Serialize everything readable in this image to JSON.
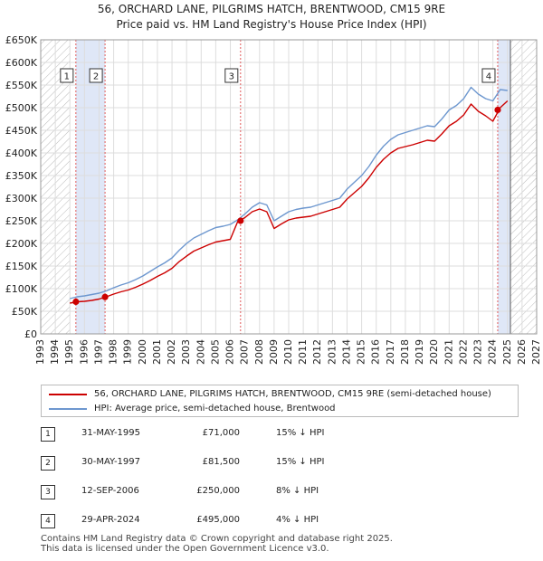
{
  "title_line1": "56, ORCHARD LANE, PILGRIMS HATCH, BRENTWOOD, CM15 9RE",
  "title_line2": "Price paid vs. HM Land Registry's House Price Index (HPI)",
  "colors": {
    "property": "#cc0000",
    "hpi": "#6d97cf",
    "sale_band": "#dfe7f7",
    "marker_line": "#e05a5a",
    "hatch": "#bbbbbb"
  },
  "legend": {
    "property_label": "56, ORCHARD LANE, PILGRIMS HATCH, BRENTWOOD, CM15 9RE (semi-detached house)",
    "hpi_label": "HPI: Average price, semi-detached house, Brentwood"
  },
  "transactions": [
    {
      "num": "1",
      "date": "31-MAY-1995",
      "price": "£71,000",
      "hpi": "15% ↓ HPI"
    },
    {
      "num": "2",
      "date": "30-MAY-1997",
      "price": "£81,500",
      "hpi": "15% ↓ HPI"
    },
    {
      "num": "3",
      "date": "12-SEP-2006",
      "price": "£250,000",
      "hpi": "8% ↓ HPI"
    },
    {
      "num": "4",
      "date": "29-APR-2024",
      "price": "£495,000",
      "hpi": "4% ↓ HPI"
    }
  ],
  "footer_line1": "Contains HM Land Registry data © Crown copyright and database right 2025.",
  "footer_line2": "This data is licensed under the Open Government Licence v3.0.",
  "chart_data": {
    "type": "line",
    "title": "Price paid vs. HM Land Registry's House Price Index (HPI)",
    "xlabel": "",
    "ylabel": "",
    "xlim": [
      1993,
      2027
    ],
    "ylim": [
      0,
      650000
    ],
    "x_ticks": [
      1993,
      1994,
      1995,
      1996,
      1997,
      1998,
      1999,
      2000,
      2001,
      2002,
      2003,
      2004,
      2005,
      2006,
      2007,
      2008,
      2009,
      2010,
      2011,
      2012,
      2013,
      2014,
      2015,
      2016,
      2017,
      2018,
      2019,
      2020,
      2021,
      2022,
      2023,
      2024,
      2025,
      2026,
      2027
    ],
    "y_ticks": [
      0,
      50000,
      100000,
      150000,
      200000,
      250000,
      300000,
      350000,
      400000,
      450000,
      500000,
      550000,
      600000,
      650000
    ],
    "y_tick_labels": [
      "£0",
      "£50K",
      "£100K",
      "£150K",
      "£200K",
      "£250K",
      "£300K",
      "£350K",
      "£400K",
      "£450K",
      "£500K",
      "£550K",
      "£600K",
      "£650K"
    ],
    "grid": true,
    "data_start": 1995.0,
    "data_end": 2025.2,
    "shaded_between_sales": [
      [
        1995.41,
        1997.41
      ],
      [
        2024.33,
        2025.2
      ]
    ],
    "hatched_regions": [
      [
        1993,
        1995.0
      ],
      [
        2025.2,
        2027
      ]
    ],
    "sales": [
      {
        "label": "1",
        "x": 1995.41,
        "y": 71000
      },
      {
        "label": "2",
        "x": 1997.41,
        "y": 81500
      },
      {
        "label": "3",
        "x": 2006.7,
        "y": 250000
      },
      {
        "label": "4",
        "x": 2024.33,
        "y": 495000
      }
    ],
    "series": [
      {
        "name": "HPI: Average price, semi-detached house, Brentwood",
        "x": [
          1995.0,
          1995.5,
          1996.0,
          1996.5,
          1997.0,
          1997.5,
          1998.0,
          1998.5,
          1999.0,
          1999.5,
          2000.0,
          2000.5,
          2001.0,
          2001.5,
          2002.0,
          2002.5,
          2003.0,
          2003.5,
          2004.0,
          2004.5,
          2005.0,
          2005.5,
          2006.0,
          2006.5,
          2007.0,
          2007.5,
          2008.0,
          2008.5,
          2009.0,
          2009.5,
          2010.0,
          2010.5,
          2011.0,
          2011.5,
          2012.0,
          2012.5,
          2013.0,
          2013.5,
          2014.0,
          2014.5,
          2015.0,
          2015.5,
          2016.0,
          2016.5,
          2017.0,
          2017.5,
          2018.0,
          2018.5,
          2019.0,
          2019.5,
          2020.0,
          2020.5,
          2021.0,
          2021.5,
          2022.0,
          2022.5,
          2023.0,
          2023.5,
          2024.0,
          2024.5,
          2025.0
        ],
        "values": [
          78000,
          82000,
          84000,
          87000,
          90000,
          95000,
          102000,
          108000,
          113000,
          120000,
          128000,
          138000,
          148000,
          157000,
          168000,
          185000,
          200000,
          212000,
          220000,
          228000,
          235000,
          238000,
          242000,
          252000,
          265000,
          280000,
          290000,
          285000,
          250000,
          260000,
          270000,
          275000,
          278000,
          280000,
          285000,
          290000,
          295000,
          300000,
          320000,
          335000,
          350000,
          370000,
          395000,
          415000,
          430000,
          440000,
          445000,
          450000,
          455000,
          460000,
          458000,
          475000,
          495000,
          505000,
          520000,
          545000,
          530000,
          520000,
          515000,
          540000,
          538000
        ]
      },
      {
        "name": "56, ORCHARD LANE, PILGRIMS HATCH, BRENTWOOD, CM15 9RE (semi-detached house)",
        "x": [
          1995.0,
          1995.5,
          1996.0,
          1996.5,
          1997.0,
          1997.5,
          1998.0,
          1998.5,
          1999.0,
          1999.5,
          2000.0,
          2000.5,
          2001.0,
          2001.5,
          2002.0,
          2002.5,
          2003.0,
          2003.5,
          2004.0,
          2004.5,
          2005.0,
          2005.5,
          2006.0,
          2006.5,
          2007.0,
          2007.5,
          2008.0,
          2008.5,
          2009.0,
          2009.5,
          2010.0,
          2010.5,
          2011.0,
          2011.5,
          2012.0,
          2012.5,
          2013.0,
          2013.5,
          2014.0,
          2014.5,
          2015.0,
          2015.5,
          2016.0,
          2016.5,
          2017.0,
          2017.5,
          2018.0,
          2018.5,
          2019.0,
          2019.5,
          2020.0,
          2020.5,
          2021.0,
          2021.5,
          2022.0,
          2022.5,
          2023.0,
          2023.5,
          2024.0,
          2024.5,
          2025.0
        ],
        "values": [
          68000,
          71000,
          72000,
          74000,
          77000,
          82000,
          88000,
          93000,
          97000,
          103000,
          110000,
          118000,
          127000,
          135000,
          145000,
          160000,
          172000,
          183000,
          190000,
          197000,
          203000,
          206000,
          209000,
          248000,
          257000,
          270000,
          276000,
          270000,
          233000,
          243000,
          252000,
          256000,
          258000,
          260000,
          265000,
          270000,
          275000,
          280000,
          298000,
          312000,
          326000,
          345000,
          368000,
          386000,
          400000,
          410000,
          414000,
          418000,
          423000,
          428000,
          426000,
          442000,
          460000,
          470000,
          484000,
          508000,
          492000,
          482000,
          470000,
          500000,
          515000
        ]
      }
    ]
  }
}
